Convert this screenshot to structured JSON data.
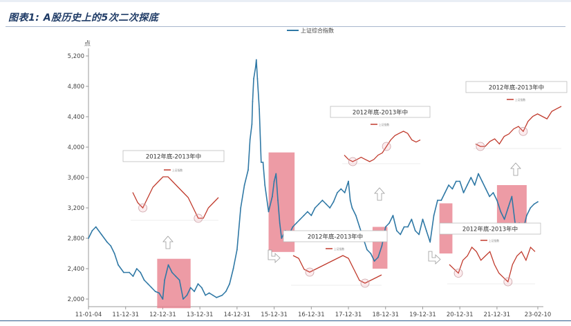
{
  "figure": {
    "title": "图表1: A股历史上的5次二次探底"
  },
  "colors": {
    "line": "#2f78a5",
    "highlight": "#e8828f",
    "inset_line": "#c0392b",
    "axis": "#999999",
    "title": "#1f3b66"
  },
  "chart_data": {
    "type": "line",
    "title": "",
    "xlabel": "",
    "ylabel": "点",
    "ylim": [
      1900,
      5300
    ],
    "yticks": [
      2000,
      2400,
      2800,
      3200,
      3600,
      4000,
      4400,
      4800,
      5200
    ],
    "ytick_labels": [
      "2,000",
      "2,400",
      "2,800",
      "3,200",
      "3,600",
      "4,000",
      "4,400",
      "4,800",
      "5,200"
    ],
    "xticks": [
      "11-01-04",
      "11-12-31",
      "12-12-31",
      "13-12-31",
      "14-12-31",
      "15-12-31",
      "16-12-31",
      "17-12-31",
      "18-12-31",
      "19-12-31",
      "20-12-31",
      "21-12-31",
      "23-02-10"
    ],
    "xtick_pos": [
      0,
      1,
      2,
      3,
      4,
      5,
      6,
      7,
      8,
      9,
      10,
      11,
      12.1
    ],
    "legend": "top-center",
    "series": [
      {
        "name": "上证综合指数",
        "x": [
          0,
          0.1,
          0.2,
          0.35,
          0.5,
          0.6,
          0.7,
          0.8,
          0.95,
          1.1,
          1.2,
          1.3,
          1.4,
          1.5,
          1.6,
          1.7,
          1.8,
          1.9,
          2.0,
          2.05,
          2.15,
          2.25,
          2.35,
          2.45,
          2.55,
          2.65,
          2.75,
          2.85,
          2.95,
          3.05,
          3.15,
          3.25,
          3.35,
          3.45,
          3.6,
          3.7,
          3.8,
          3.9,
          4.0,
          4.1,
          4.2,
          4.3,
          4.35,
          4.4,
          4.42,
          4.45,
          4.5,
          4.52,
          4.55,
          4.6,
          4.65,
          4.7,
          4.75,
          4.85,
          4.95,
          5.0,
          5.05,
          5.1,
          5.15,
          5.2,
          5.3,
          5.4,
          5.5,
          5.6,
          5.7,
          5.8,
          5.9,
          6.0,
          6.1,
          6.2,
          6.3,
          6.4,
          6.5,
          6.6,
          6.7,
          6.8,
          6.9,
          7.0,
          7.05,
          7.1,
          7.2,
          7.3,
          7.4,
          7.5,
          7.6,
          7.7,
          7.8,
          7.9,
          8.0,
          8.1,
          8.2,
          8.3,
          8.4,
          8.5,
          8.6,
          8.7,
          8.8,
          8.9,
          9.0,
          9.1,
          9.2,
          9.3,
          9.4,
          9.5,
          9.6,
          9.7,
          9.8,
          9.9,
          10.0,
          10.1,
          10.2,
          10.3,
          10.4,
          10.5,
          10.6,
          10.7,
          10.8,
          10.9,
          11.0,
          11.1,
          11.2,
          11.3,
          11.4,
          11.5,
          11.6,
          11.7,
          11.8,
          11.9,
          12.0,
          12.1
        ],
        "values": [
          2800,
          2900,
          2950,
          2850,
          2750,
          2700,
          2600,
          2450,
          2350,
          2350,
          2300,
          2400,
          2350,
          2250,
          2200,
          2150,
          2100,
          2080,
          2000,
          2250,
          2450,
          2350,
          2300,
          2250,
          2000,
          2050,
          2150,
          2100,
          2200,
          2150,
          2050,
          2080,
          2050,
          2020,
          2050,
          2100,
          2200,
          2400,
          2650,
          3200,
          3500,
          3700,
          4100,
          4300,
          4600,
          4900,
          5050,
          5150,
          4900,
          4500,
          3800,
          3800,
          3500,
          3150,
          3350,
          3550,
          3650,
          3300,
          3000,
          2800,
          2900,
          2850,
          2950,
          3000,
          3050,
          3100,
          3150,
          3100,
          3200,
          3250,
          3300,
          3250,
          3200,
          3280,
          3400,
          3450,
          3400,
          3550,
          3300,
          3200,
          3100,
          2950,
          2800,
          2650,
          2600,
          2500,
          2550,
          2700,
          2950,
          3000,
          3100,
          2900,
          2850,
          2950,
          2950,
          3050,
          2900,
          2850,
          3050,
          2900,
          2750,
          3100,
          3300,
          3300,
          3400,
          3500,
          3450,
          3550,
          3550,
          3400,
          3500,
          3600,
          3500,
          3650,
          3550,
          3450,
          3350,
          3400,
          3300,
          3150,
          3050,
          3200,
          3350,
          2950,
          3000,
          2900,
          3100,
          3200,
          3250,
          3280
        ]
      }
    ],
    "highlights": [
      {
        "x0": 1.85,
        "x1": 2.75,
        "y0": 1880,
        "y1": 2530
      },
      {
        "x0": 4.85,
        "x1": 5.55,
        "y0": 2620,
        "y1": 3930
      },
      {
        "x0": 7.65,
        "x1": 8.05,
        "y0": 2400,
        "y1": 2950
      },
      {
        "x0": 9.45,
        "x1": 9.8,
        "y0": 2600,
        "y1": 3260
      },
      {
        "x0": 11.0,
        "x1": 11.8,
        "y0": 2900,
        "y1": 3500
      }
    ],
    "insets": [
      {
        "title": "2012年底-2013年中",
        "legend": "上证指数",
        "values": [
          2450,
          2350,
          2300,
          2400,
          2500,
          2550,
          2600,
          2600,
          2550,
          2500,
          2450,
          2400,
          2300,
          2200,
          2200,
          2300,
          2350,
          2400
        ]
      },
      {
        "title": "2012年底-2013年中",
        "legend": "上证指数",
        "values": [
          2950,
          2850,
          2800,
          2850,
          2900,
          2850,
          2800,
          2850,
          2950,
          3000,
          3150,
          3300,
          3400,
          3450,
          3500,
          3450,
          3300,
          3250,
          3300
        ]
      },
      {
        "title": "2012年底-2013年中",
        "legend": "上证指数",
        "values": [
          3000,
          2950,
          2750,
          2700,
          2750,
          2800,
          2850,
          2900,
          2950,
          3000,
          2950,
          2750,
          2550,
          2500,
          2550,
          2600,
          2650
        ]
      },
      {
        "title": "2012年底-2013年中",
        "legend": "上证指数",
        "values": [
          2900,
          2850,
          2850,
          2950,
          3000,
          2900,
          3050,
          3100,
          3200,
          3250,
          3150,
          3350,
          3450,
          3500,
          3450,
          3400,
          3550,
          3600,
          3650
        ]
      },
      {
        "title": "2012年底-2013年中",
        "legend": "上证指数",
        "values": [
          3450,
          3400,
          3350,
          3500,
          3550,
          3650,
          3600,
          3500,
          3550,
          3600,
          3450,
          3350,
          3300,
          3250,
          3450,
          3550,
          3600,
          3500,
          3650,
          3600
        ]
      }
    ]
  }
}
